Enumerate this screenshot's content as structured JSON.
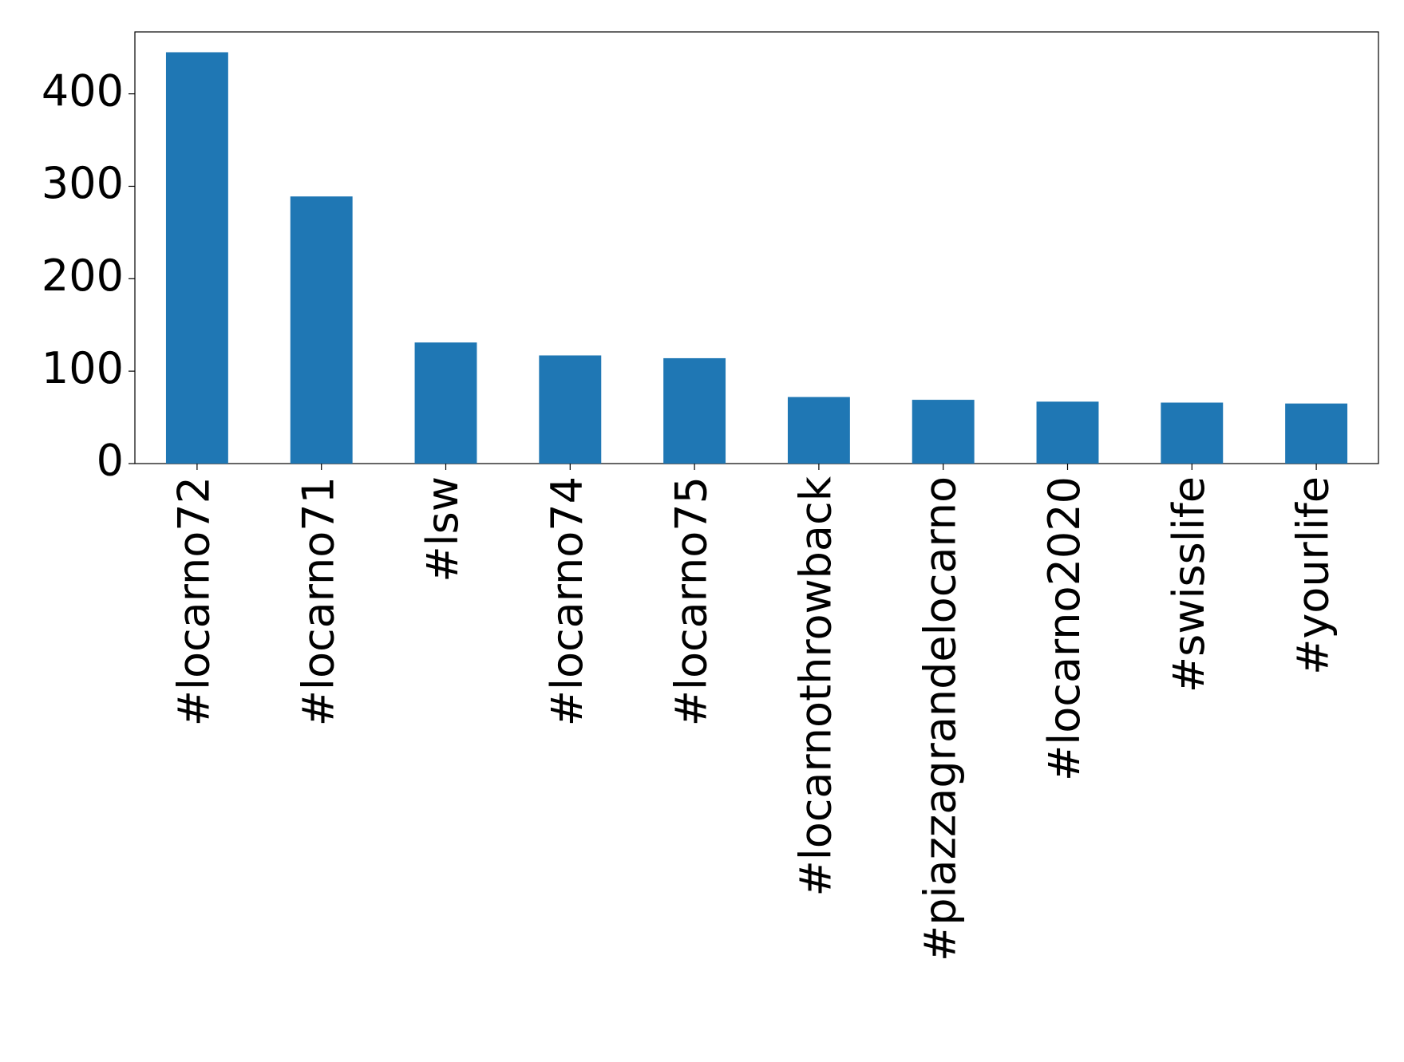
{
  "chart_data": {
    "type": "bar",
    "categories": [
      "#locarno72",
      "#locarno71",
      "#lsw",
      "#locarno74",
      "#locarno75",
      "#locarnothrowback",
      "#piazzagrandelocarno",
      "#locarno2020",
      "#swisslife",
      "#yourlife"
    ],
    "values": [
      445,
      289,
      131,
      117,
      114,
      72,
      69,
      67,
      66,
      65
    ],
    "color": "#1f77b4",
    "ylim": [
      0,
      467
    ],
    "yticks": [
      0,
      100,
      200,
      300,
      400
    ],
    "grid": false
  }
}
